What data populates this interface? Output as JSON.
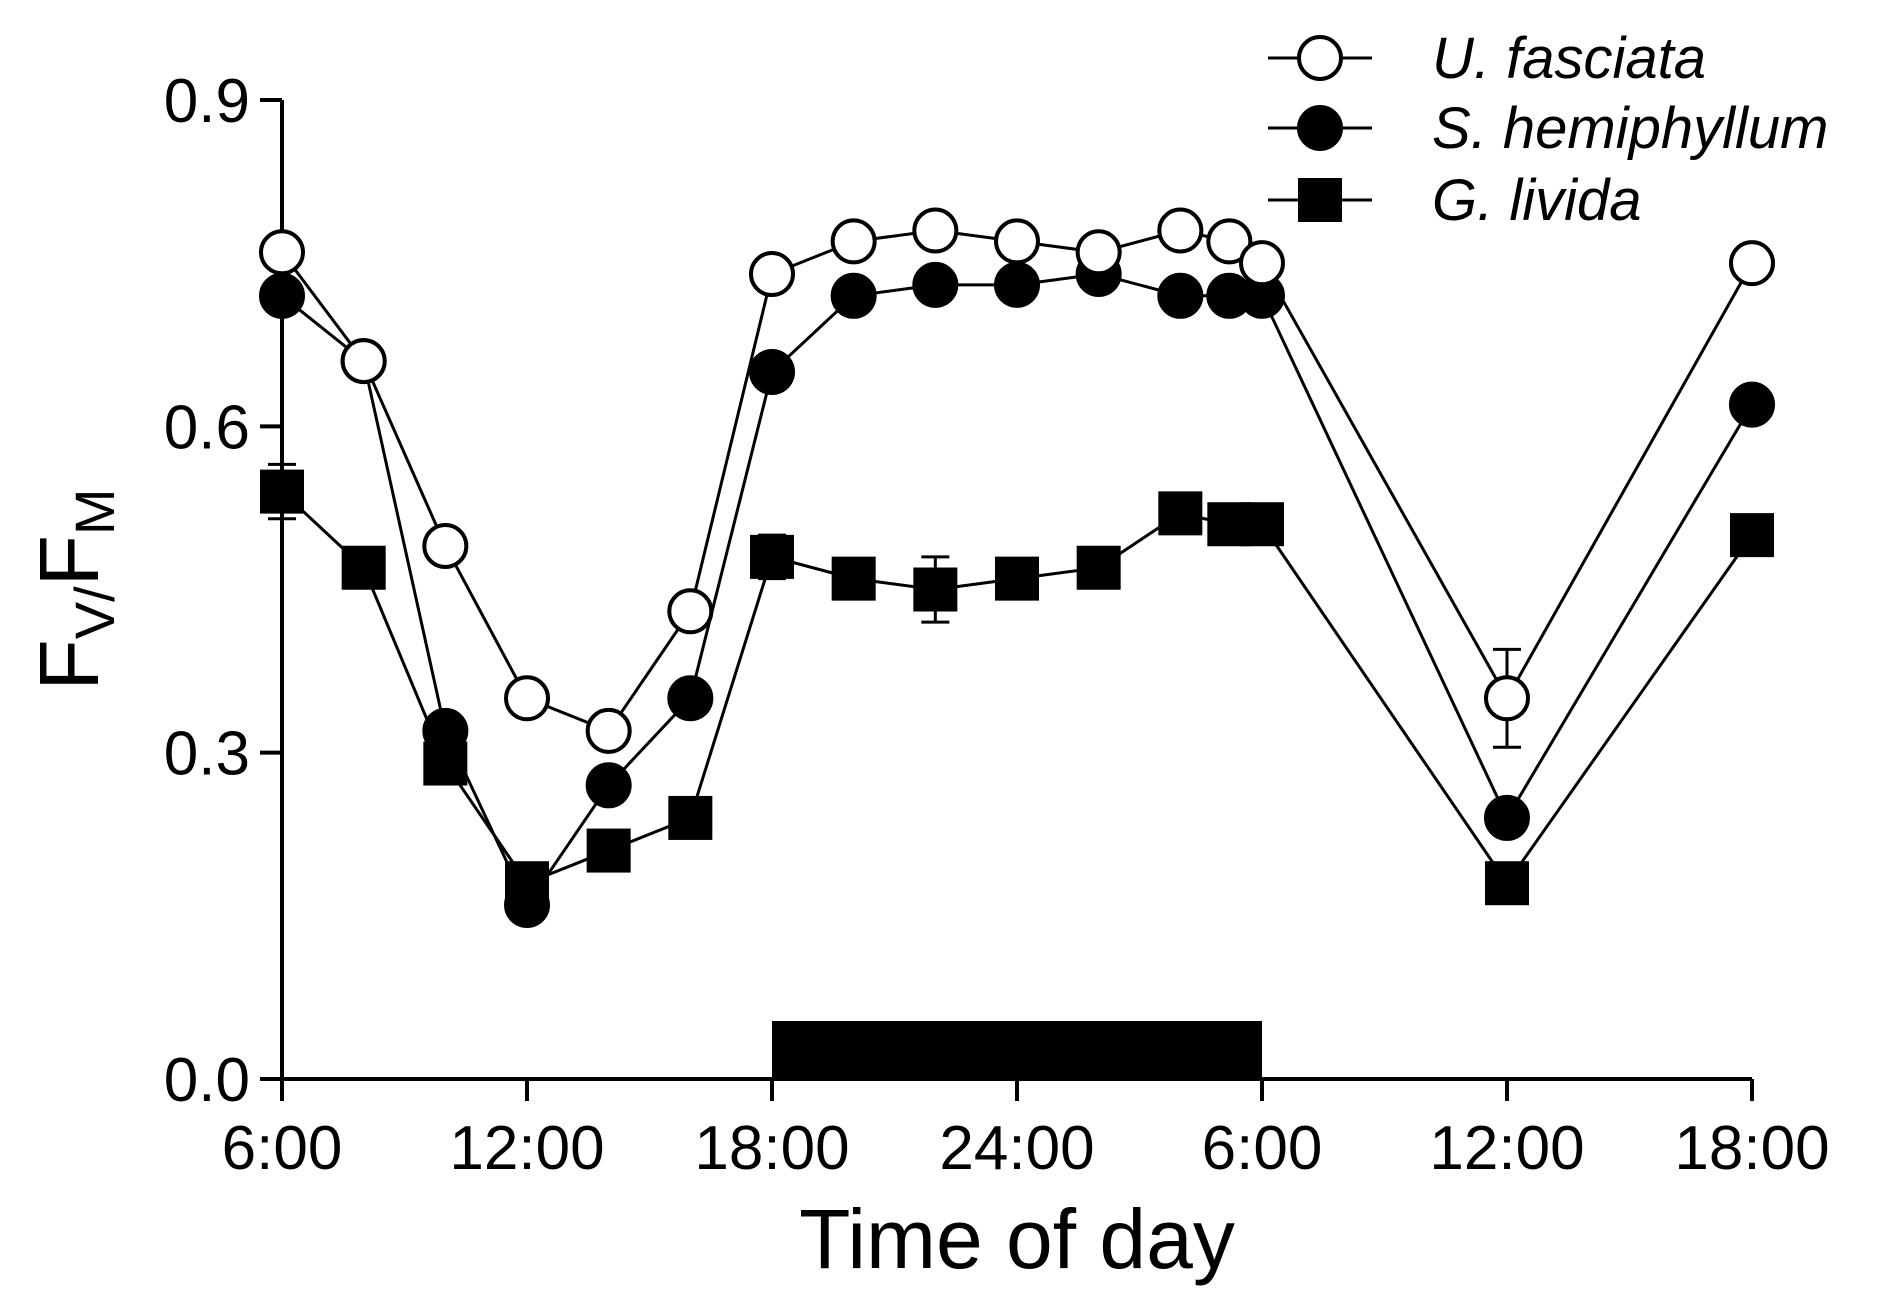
{
  "chart_data": {
    "type": "line",
    "title": "",
    "xlabel": "Time of day",
    "ylabel": {
      "main_f1": "F",
      "sub_v": "V/",
      "main_f2": "F",
      "sub_m": "M"
    },
    "ylim": [
      0,
      0.9
    ],
    "yticks": [
      0.0,
      0.3,
      0.6,
      0.9
    ],
    "ytick_labels": [
      "0.0",
      "0.3",
      "0.6",
      "0.9"
    ],
    "xlim": [
      6,
      42
    ],
    "xticks": [
      6,
      12,
      18,
      24,
      30,
      36,
      42
    ],
    "xtick_labels": [
      "6:00",
      "12:00",
      "18:00",
      "24:00",
      "6:00",
      "12:00",
      "18:00"
    ],
    "dark_period": {
      "start": 18,
      "end": 30
    },
    "legend_position": "top-right",
    "series": [
      {
        "name": "U. fasciata",
        "marker": "open-circle",
        "x": [
          6,
          8,
          10,
          12,
          14,
          16,
          18,
          20,
          22,
          24,
          26,
          28,
          29.2,
          30,
          36,
          42
        ],
        "y": [
          0.76,
          0.66,
          0.49,
          0.35,
          0.32,
          0.43,
          0.74,
          0.77,
          0.78,
          0.77,
          0.76,
          0.78,
          0.77,
          0.75,
          0.35,
          0.75
        ],
        "err": [
          0.01,
          0.01,
          0.01,
          0.01,
          0.01,
          0.01,
          0.01,
          0.01,
          0.01,
          0.01,
          0.01,
          0.01,
          0.01,
          0.01,
          0.045,
          0.01
        ]
      },
      {
        "name": "S. hemiphyllum",
        "marker": "filled-circle",
        "x": [
          6,
          8,
          10,
          12,
          14,
          16,
          18,
          20,
          22,
          24,
          26,
          28,
          29.2,
          30,
          36,
          42
        ],
        "y": [
          0.72,
          0.66,
          0.32,
          0.16,
          0.27,
          0.35,
          0.65,
          0.72,
          0.73,
          0.73,
          0.74,
          0.72,
          0.72,
          0.72,
          0.24,
          0.62
        ],
        "err": [
          0.01,
          0.01,
          0.01,
          0.01,
          0.01,
          0.01,
          0.01,
          0.01,
          0.01,
          0.01,
          0.01,
          0.01,
          0.01,
          0.01,
          0.01,
          0.01
        ]
      },
      {
        "name": "G. livida",
        "marker": "filled-square",
        "x": [
          6,
          8,
          10,
          12,
          14,
          16,
          18,
          20,
          22,
          24,
          26,
          28,
          29.2,
          30,
          36,
          42
        ],
        "y": [
          0.54,
          0.47,
          0.29,
          0.18,
          0.21,
          0.24,
          0.48,
          0.46,
          0.45,
          0.46,
          0.47,
          0.52,
          0.51,
          0.51,
          0.18,
          0.5
        ],
        "err": [
          0.025,
          0.01,
          0.01,
          0.01,
          0.01,
          0.01,
          0.02,
          0.01,
          0.03,
          0.01,
          0.01,
          0.01,
          0.01,
          0.01,
          0.01,
          0.01
        ]
      }
    ]
  }
}
